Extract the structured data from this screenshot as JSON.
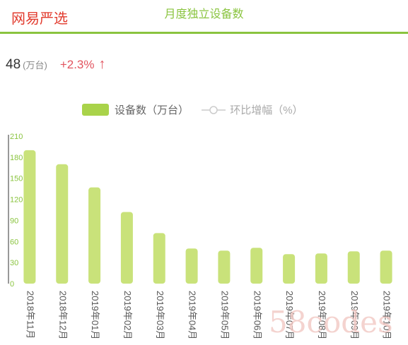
{
  "brand": "网易严选",
  "header": {
    "title": "月度独立设备数"
  },
  "kpi": {
    "value": "48",
    "unit": "(万台)",
    "change": "+2.3%",
    "arrow": "↑"
  },
  "legend": {
    "bar_label": "设备数（万台）",
    "line_label": "环比增幅（%）"
  },
  "watermark": "58codes",
  "colors": {
    "bar": "#c9e27a",
    "accent": "#8ac43f",
    "negative": "#e2545f"
  },
  "chart_data": {
    "type": "bar",
    "categories": [
      "2018年11月",
      "2018年12月",
      "2019年01月",
      "2019年02月",
      "2019年03月",
      "2019年04月",
      "2019年05月",
      "2019年06月",
      "2019年07月",
      "2019年08月",
      "2019年09月",
      "2019年10月"
    ],
    "series": [
      {
        "name": "设备数（万台）",
        "values": [
          190,
          170,
          137,
          102,
          72,
          50,
          47,
          51,
          42,
          43,
          46,
          47
        ]
      }
    ],
    "yticks": [
      0,
      30,
      60,
      90,
      120,
      150,
      180,
      210
    ],
    "ylim": [
      0,
      210
    ],
    "title": "",
    "xlabel": "",
    "ylabel": ""
  }
}
